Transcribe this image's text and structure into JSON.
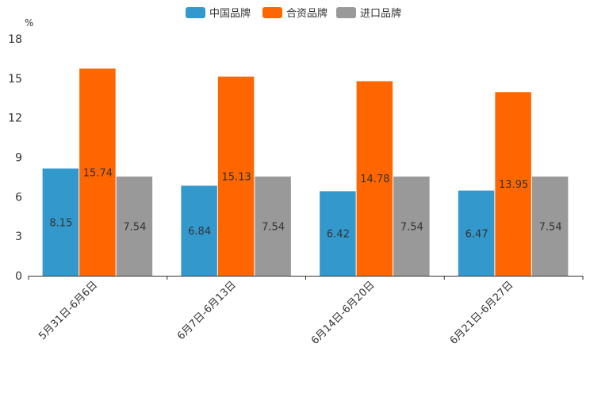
{
  "chart_data": {
    "type": "bar",
    "unit": "%",
    "categories": [
      "5月31日-6月6日",
      "6月7日-6月13日",
      "6月14日-6月20日",
      "6月21日-6月27日"
    ],
    "series": [
      {
        "name": "中国品牌",
        "color": "#3399cc",
        "values": [
          8.15,
          6.84,
          6.42,
          6.47
        ],
        "labels": [
          "8.15",
          "6.84",
          "6.42",
          "6.47"
        ]
      },
      {
        "name": "合资品牌",
        "color": "#ff6600",
        "values": [
          15.74,
          15.13,
          14.78,
          13.95
        ],
        "labels": [
          "15.74",
          "15.13",
          "14.78",
          "13.95"
        ]
      },
      {
        "name": "进口品牌",
        "color": "#999999",
        "values": [
          7.54,
          7.54,
          7.54,
          7.54
        ],
        "labels": [
          "7.54",
          "7.54",
          "7.54",
          "7.54"
        ]
      }
    ],
    "ylim": [
      0,
      18
    ],
    "yticks": [
      "0",
      "3",
      "6",
      "9",
      "12",
      "15",
      "18"
    ],
    "legend_position": "top-center"
  }
}
